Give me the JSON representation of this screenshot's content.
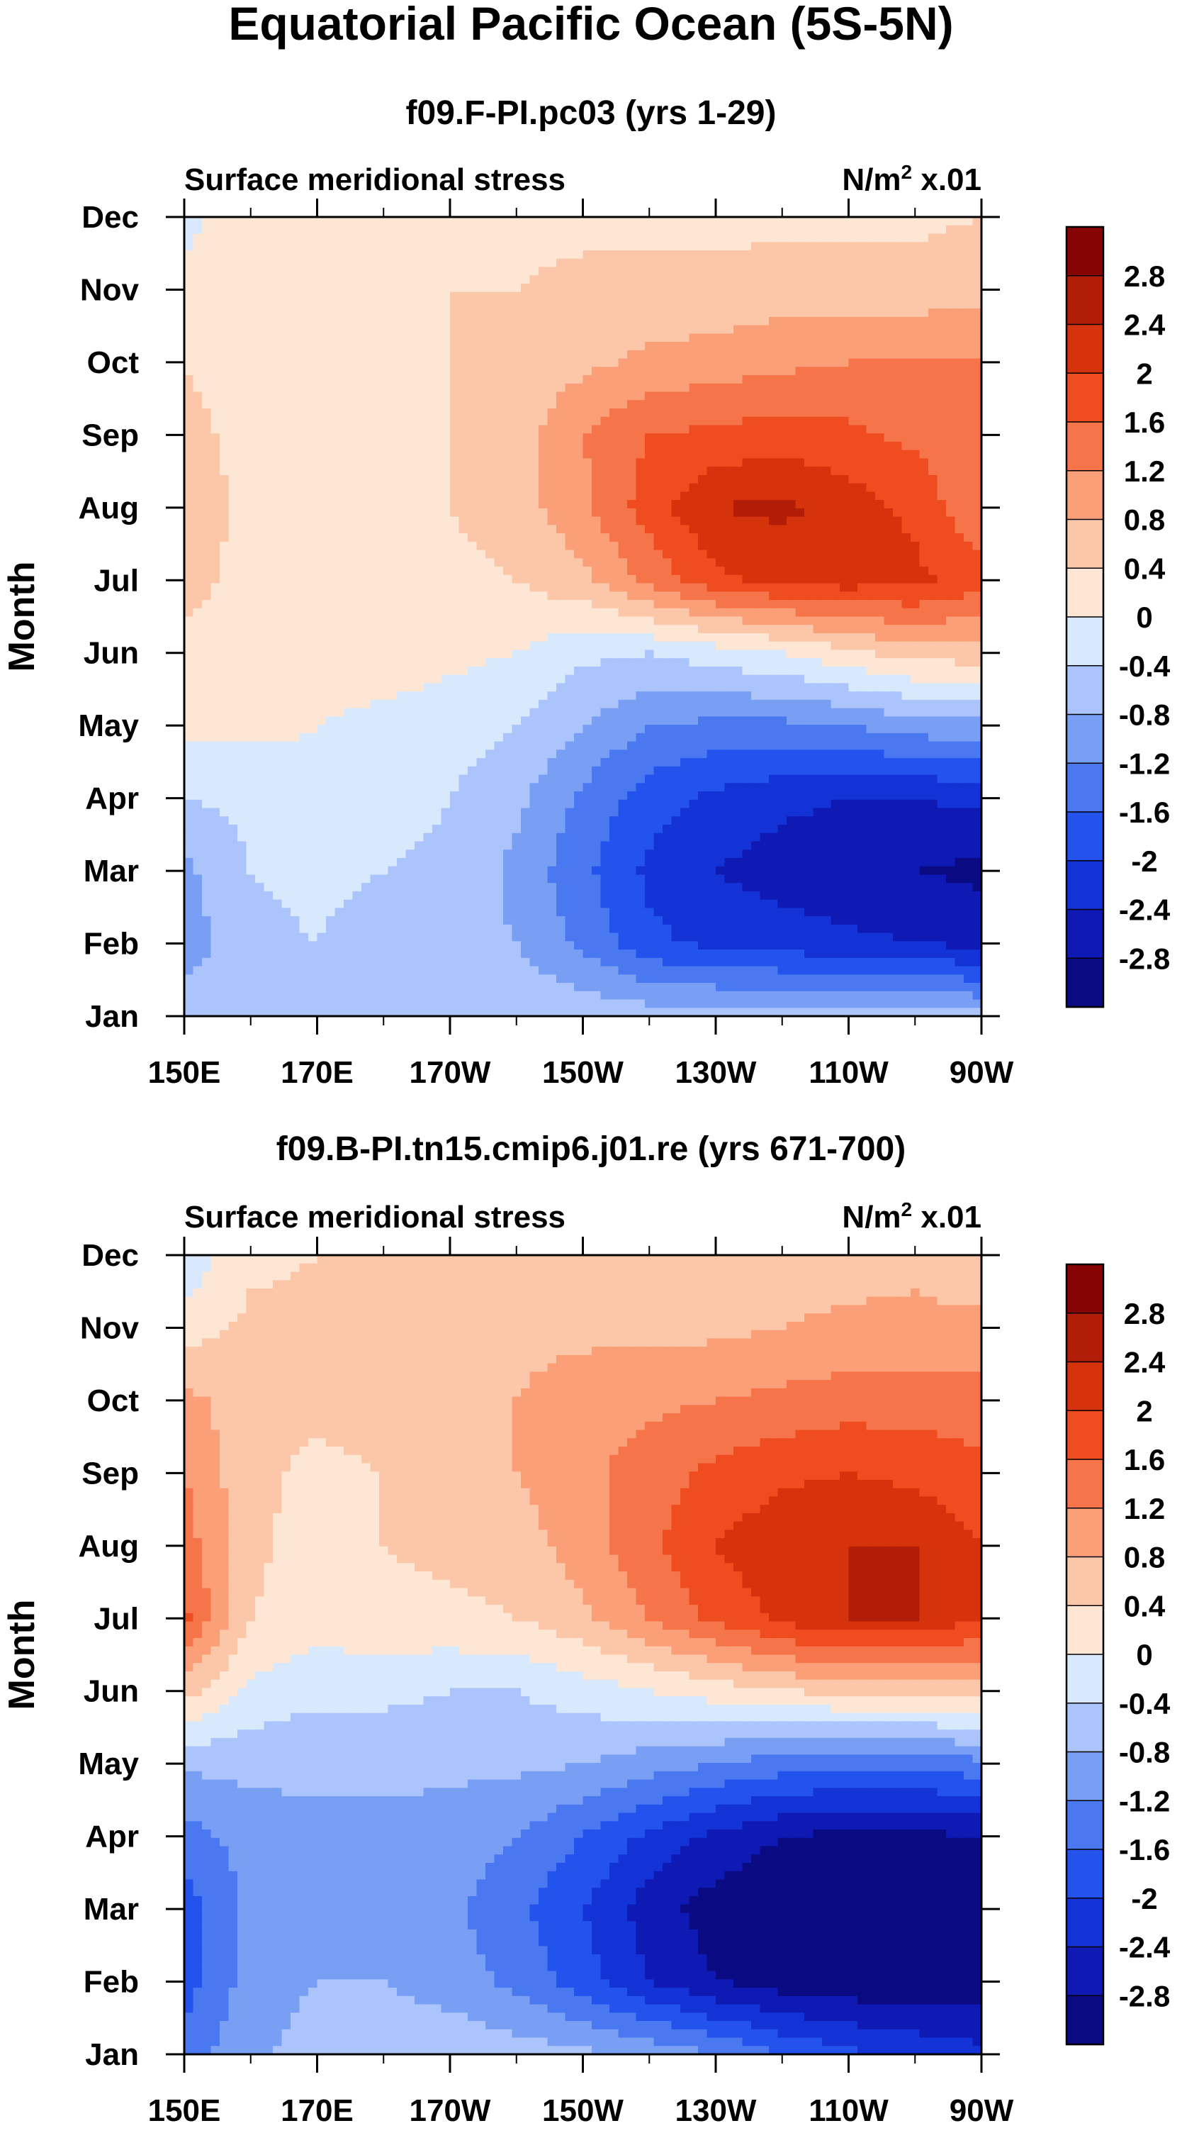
{
  "figure": {
    "title": "Equatorial Pacific Ocean (5S-5N)"
  },
  "chart_data": [
    {
      "type": "heatmap",
      "title": "f09.F-PI.pc03 (yrs 1-29)",
      "left_label": "Surface meridional stress",
      "units_base": "N/m",
      "units_sup": "2",
      "units_tail": " x.01",
      "ylabel": "Month",
      "xlabel": "",
      "x_ticks": [
        "150E",
        "170E",
        "170W",
        "150W",
        "130W",
        "110W",
        "90W"
      ],
      "y_ticks": [
        "Jan",
        "Feb",
        "Mar",
        "Apr",
        "May",
        "Jun",
        "Jul",
        "Aug",
        "Sep",
        "Oct",
        "Nov",
        "Dec"
      ],
      "x_range": [
        "150E",
        "90W"
      ],
      "y_range": [
        "Jan",
        "Dec"
      ],
      "levels": [
        -2.8,
        -2.4,
        -2,
        -1.6,
        -1.2,
        -0.8,
        -0.4,
        0,
        0.4,
        0.8,
        1.2,
        1.6,
        2,
        2.4,
        2.8
      ],
      "features": [
        {
          "month": "Aug",
          "region": "140W-120W",
          "value": 2.4,
          "note": "positive maximum"
        },
        {
          "month": "Mar",
          "region": "100W-92W",
          "value": -2.8,
          "note": "negative minimum"
        },
        {
          "month": "Jul",
          "region": "150E",
          "value": 0.8
        },
        {
          "month": "Sep-Oct",
          "region": "150E-145E",
          "value": 0.4
        }
      ],
      "grid": "longitude step 10 deg (150E..90W), monthly Jan..Dec",
      "values": [
        [
          -0.6,
          -0.7,
          -0.5,
          -0.4,
          -0.5,
          -0.5,
          -0.5,
          -0.6,
          -0.6,
          -0.6,
          -0.6,
          -0.6,
          -0.7
        ],
        [
          -1.0,
          -0.5,
          -0.4,
          -0.6,
          -0.7,
          -0.8,
          -1.3,
          -1.9,
          -2.1,
          -2.2,
          -2.3,
          -2.4,
          -2.5
        ],
        [
          -0.9,
          -0.4,
          -0.3,
          -0.4,
          -0.5,
          -0.9,
          -1.5,
          -2.1,
          -2.4,
          -2.6,
          -2.7,
          -2.8,
          -2.9
        ],
        [
          -0.4,
          -0.3,
          -0.1,
          -0.2,
          -0.4,
          -0.7,
          -1.3,
          -1.8,
          -2.1,
          -2.3,
          -2.4,
          -2.4,
          -2.3
        ],
        [
          0.1,
          0.1,
          0.0,
          -0.1,
          -0.2,
          -0.4,
          -0.8,
          -1.2,
          -1.3,
          -1.3,
          -1.2,
          -1.0,
          -0.9
        ],
        [
          0.3,
          0.3,
          0.2,
          0.2,
          0.1,
          0.0,
          -0.3,
          -0.4,
          -0.2,
          0.0,
          0.3,
          0.6,
          0.6
        ],
        [
          0.5,
          0.3,
          0.3,
          0.3,
          0.3,
          0.4,
          0.7,
          1.3,
          1.9,
          2.1,
          2.2,
          2.1,
          1.8
        ],
        [
          0.6,
          0.3,
          0.3,
          0.3,
          0.4,
          0.6,
          1.1,
          1.8,
          2.4,
          2.5,
          2.2,
          1.9,
          1.2
        ],
        [
          0.5,
          0.3,
          0.3,
          0.3,
          0.4,
          0.6,
          1.2,
          1.6,
          1.7,
          1.8,
          1.7,
          1.5,
          1.3
        ],
        [
          0.4,
          0.2,
          0.2,
          0.3,
          0.4,
          0.5,
          0.7,
          0.9,
          1.0,
          1.1,
          1.2,
          1.2,
          1.2
        ],
        [
          0.1,
          0.2,
          0.2,
          0.3,
          0.4,
          0.4,
          0.5,
          0.5,
          0.5,
          0.6,
          0.6,
          0.6,
          0.7
        ],
        [
          -0.1,
          0.2,
          0.3,
          0.3,
          0.3,
          0.3,
          0.3,
          0.3,
          0.3,
          0.3,
          0.3,
          0.3,
          0.4
        ]
      ]
    },
    {
      "type": "heatmap",
      "title": "f09.B-PI.tn15.cmip6.j01.re (yrs 671-700)",
      "left_label": "Surface meridional stress",
      "units_base": "N/m",
      "units_sup": "2",
      "units_tail": " x.01",
      "ylabel": "Month",
      "xlabel": "",
      "x_ticks": [
        "150E",
        "170E",
        "170W",
        "150W",
        "130W",
        "110W",
        "90W"
      ],
      "y_ticks": [
        "Jan",
        "Feb",
        "Mar",
        "Apr",
        "May",
        "Jun",
        "Jul",
        "Aug",
        "Sep",
        "Oct",
        "Nov",
        "Dec"
      ],
      "x_range": [
        "150E",
        "90W"
      ],
      "y_range": [
        "Jan",
        "Dec"
      ],
      "levels": [
        -2.8,
        -2.4,
        -2,
        -1.6,
        -1.2,
        -0.8,
        -0.4,
        0,
        0.4,
        0.8,
        1.2,
        1.6,
        2,
        2.4,
        2.8
      ],
      "features": [
        {
          "month": "Jul",
          "region": "115W-95W",
          "value": 2.4,
          "note": "positive maximum"
        },
        {
          "month": "Mar",
          "region": "130W-90W",
          "value": -2.8,
          "note": "negative minimum"
        },
        {
          "month": "Jul",
          "region": "150E",
          "value": 1.6
        },
        {
          "month": "Mar",
          "region": "150E",
          "value": -1.6
        }
      ],
      "grid": "longitude step 10 deg (150E..90W), monthly Jan..Dec",
      "values": [
        [
          -1.4,
          -0.9,
          -0.6,
          -0.5,
          -0.5,
          -0.6,
          -0.7,
          -0.9,
          -1.2,
          -1.6,
          -1.9,
          -2.1,
          -2.3
        ],
        [
          -1.8,
          -1.0,
          -0.8,
          -0.8,
          -1.0,
          -1.3,
          -1.8,
          -2.4,
          -2.8,
          -3.0,
          -3.1,
          -3.1,
          -3.0
        ],
        [
          -1.8,
          -1.1,
          -1.0,
          -1.0,
          -1.1,
          -1.5,
          -2.0,
          -2.6,
          -3.0,
          -3.2,
          -3.2,
          -3.2,
          -3.1
        ],
        [
          -1.4,
          -1.0,
          -0.9,
          -0.9,
          -1.0,
          -1.2,
          -1.6,
          -2.1,
          -2.5,
          -2.8,
          -2.9,
          -2.9,
          -2.8
        ],
        [
          -0.7,
          -0.7,
          -0.7,
          -0.7,
          -0.7,
          -0.7,
          -0.8,
          -1.0,
          -1.2,
          -1.4,
          -1.5,
          -1.5,
          -1.3
        ],
        [
          0.6,
          -0.1,
          -0.3,
          -0.3,
          -0.4,
          -0.4,
          -0.2,
          0.0,
          0.2,
          0.4,
          0.5,
          0.5,
          0.6
        ],
        [
          1.7,
          0.4,
          0.2,
          0.3,
          0.3,
          0.4,
          0.7,
          1.2,
          1.7,
          2.1,
          2.4,
          2.4,
          2.0
        ],
        [
          1.4,
          0.5,
          0.2,
          0.4,
          0.5,
          0.6,
          1.0,
          1.5,
          2.0,
          2.3,
          2.4,
          2.4,
          2.0
        ],
        [
          1.2,
          0.5,
          0.3,
          0.4,
          0.6,
          0.8,
          1.1,
          1.4,
          1.7,
          1.9,
          2.0,
          1.9,
          1.7
        ],
        [
          0.9,
          0.6,
          0.5,
          0.6,
          0.7,
          0.8,
          1.0,
          1.1,
          1.2,
          1.3,
          1.4,
          1.4,
          1.4
        ],
        [
          0.2,
          0.5,
          0.5,
          0.6,
          0.6,
          0.7,
          0.7,
          0.7,
          0.7,
          0.8,
          0.9,
          0.9,
          0.9
        ],
        [
          -0.3,
          0.3,
          0.4,
          0.5,
          0.5,
          0.5,
          0.5,
          0.5,
          0.5,
          0.6,
          0.6,
          0.7,
          0.5
        ]
      ]
    }
  ],
  "colorbar": {
    "colors": [
      "#0a0a82",
      "#0f19b4",
      "#1433d6",
      "#2353ec",
      "#4a78f0",
      "#799ff5",
      "#abc4fb",
      "#d8e8fd",
      "#fde7d4",
      "#fcc7a8",
      "#fa9f78",
      "#f5744a",
      "#ef4c20",
      "#d5330b",
      "#b21d08",
      "#860404"
    ],
    "labels": [
      "2.8",
      "2.4",
      "2",
      "1.6",
      "1.2",
      "0.8",
      "0.4",
      "0",
      "-0.4",
      "-0.8",
      "-1.2",
      "-1.6",
      "-2",
      "-2.4",
      "-2.8"
    ]
  }
}
